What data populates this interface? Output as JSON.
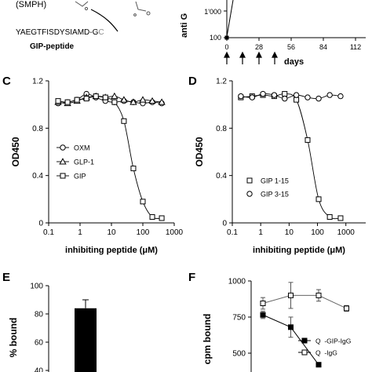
{
  "panel_top": {
    "peptide_top": "(SMPH)",
    "peptide_sequence": "YAEGTFISDYSIAMD-G",
    "peptide_end": "C",
    "peptide_name": "GIP-peptide",
    "ylabel": "anti G",
    "tick_labels_y": [
      "1'000",
      "100"
    ],
    "tick_labels_x": [
      "0",
      "28",
      "56",
      "84",
      "112"
    ],
    "xlabel": "days"
  },
  "panel_c": {
    "letter": "C"
  },
  "panel_d": {
    "letter": "D"
  },
  "panel_e": {
    "letter": "E"
  },
  "panel_f": {
    "letter": "F"
  },
  "chart_data": [
    {
      "type": "line",
      "panel": "C",
      "xlabel": "inhibiting peptide (μM)",
      "ylabel": "OD450",
      "xscale": "log",
      "xlim": [
        0.1,
        1000
      ],
      "ylim": [
        0,
        1.2
      ],
      "xticks": [
        "0.1",
        "1",
        "10",
        "100",
        "1000"
      ],
      "yticks": [
        "0",
        "0.4",
        "0.8",
        "1.2"
      ],
      "legend_position": "lower-left",
      "series": [
        {
          "name": "OXM",
          "marker": "circle",
          "x": [
            0.2,
            0.4,
            0.8,
            1.6,
            3.2,
            6.4,
            12.5,
            25,
            50,
            100,
            200,
            400
          ],
          "y": [
            1.01,
            1.02,
            1.04,
            1.09,
            1.06,
            1.03,
            1.02,
            1.03,
            1.02,
            1.01,
            1.02,
            1.01
          ]
        },
        {
          "name": "GLP-1",
          "marker": "triangle",
          "x": [
            0.2,
            0.4,
            0.8,
            1.6,
            3.2,
            6.4,
            12.5,
            25,
            50,
            100,
            200,
            400
          ],
          "y": [
            1.02,
            1.01,
            1.03,
            1.06,
            1.07,
            1.06,
            1.07,
            1.04,
            1.02,
            1.04,
            1.03,
            1.02
          ]
        },
        {
          "name": "GIP",
          "marker": "square",
          "x": [
            0.2,
            0.4,
            0.8,
            1.6,
            3.2,
            6.4,
            12.5,
            25,
            50,
            100,
            200,
            400
          ],
          "y": [
            1.03,
            1.02,
            1.04,
            1.05,
            1.07,
            1.06,
            1.02,
            0.86,
            0.46,
            0.18,
            0.05,
            0.04
          ]
        }
      ]
    },
    {
      "type": "line",
      "panel": "D",
      "xlabel": "inhibiting peptide (μM)",
      "ylabel": "OD450",
      "xscale": "log",
      "xlim": [
        0.1,
        5000
      ],
      "ylim": [
        0,
        1.2
      ],
      "xticks": [
        "0.1",
        "1",
        "10",
        "100",
        "1000"
      ],
      "yticks": [
        "0",
        "0.4",
        "0.8",
        "1.2"
      ],
      "legend_position": "lower-left",
      "series": [
        {
          "name": "GIP 1-15",
          "marker": "square",
          "x": [
            0.2,
            0.5,
            1.2,
            3,
            7,
            18,
            45,
            110,
            270,
            650
          ],
          "y": [
            1.06,
            1.07,
            1.08,
            1.07,
            1.09,
            1.04,
            0.7,
            0.2,
            0.05,
            0.04
          ]
        },
        {
          "name": "GIP 3-15",
          "marker": "circle",
          "x": [
            0.2,
            0.5,
            1.2,
            3,
            7,
            18,
            45,
            110,
            270,
            650
          ],
          "y": [
            1.07,
            1.06,
            1.09,
            1.08,
            1.05,
            1.08,
            1.06,
            1.05,
            1.08,
            1.07
          ]
        }
      ]
    },
    {
      "type": "bar",
      "panel": "E",
      "ylabel": "% bound",
      "ylim": [
        40,
        100
      ],
      "yticks": [
        "40",
        "60",
        "80",
        "100"
      ],
      "categories": [
        ""
      ],
      "values": [
        84
      ],
      "errors": [
        6
      ]
    },
    {
      "type": "line",
      "panel": "F",
      "ylabel": "cpm bound",
      "ylim": [
        500,
        1000
      ],
      "yticks": [
        "500",
        "750",
        "1000"
      ],
      "series": [
        {
          "name": "Q  -GIP-IgG",
          "marker": "filled-square",
          "x": [
            1,
            2,
            3
          ],
          "y": [
            765,
            680,
            420
          ],
          "err": [
            25,
            70,
            0
          ]
        },
        {
          "name": "Q  -IgG",
          "marker": "open-square",
          "x": [
            1,
            2,
            3,
            4
          ],
          "y": [
            845,
            900,
            900,
            810
          ],
          "err": [
            40,
            90,
            40,
            20
          ]
        }
      ]
    }
  ]
}
